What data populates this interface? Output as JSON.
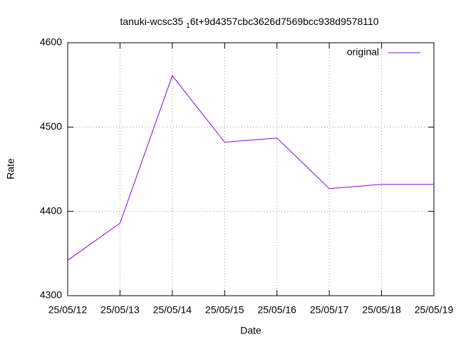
{
  "chart_data": {
    "type": "line",
    "title": [
      "tanuki-wcsc35",
      "1",
      "6t+9d4357cbc3626d7569bcc938d9578110"
    ],
    "x_label": "Date",
    "y_label": "Rate",
    "categories": [
      "25/05/12",
      "25/05/13",
      "25/05/14",
      "25/05/15",
      "25/05/16",
      "25/05/17",
      "25/05/18",
      "25/05/19"
    ],
    "series": [
      {
        "name": "original",
        "color": "#9400d3",
        "values": [
          4342,
          4386,
          4561,
          4482,
          4487,
          4427,
          4432,
          4432
        ]
      }
    ],
    "ylim": [
      4300,
      4600
    ],
    "yticks": [
      4300,
      4400,
      4500,
      4600
    ],
    "grid": true,
    "legend": "top-right"
  }
}
